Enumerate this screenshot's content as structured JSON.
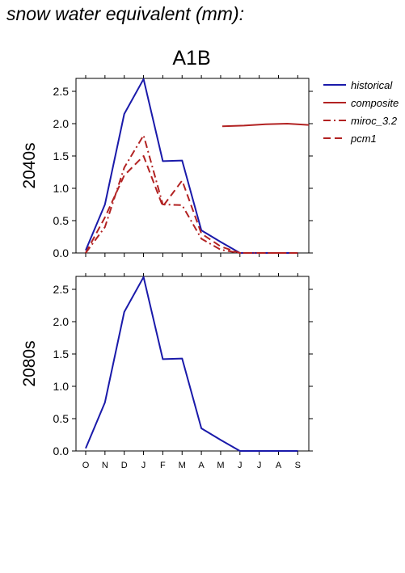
{
  "page_title": "snow water equivalent (mm):",
  "chart_data": {
    "type": "line",
    "scenario_title": "A1B",
    "categories": [
      "O",
      "N",
      "D",
      "J",
      "F",
      "M",
      "A",
      "M",
      "J",
      "J",
      "A",
      "S"
    ],
    "ylim": [
      0,
      2.7
    ],
    "yticks": [
      "0.0",
      "0.5",
      "1.0",
      "1.5",
      "2.0",
      "2.5"
    ],
    "ytick_values": [
      0,
      0.5,
      1.0,
      1.5,
      2.0,
      2.5
    ],
    "legend_position": "right",
    "legend": [
      {
        "name": "historical",
        "color": "#1a1aaa",
        "dash": "solid"
      },
      {
        "name": "composite",
        "color": "#b22222",
        "dash": "solid"
      },
      {
        "name": "miroc_3.2",
        "color": "#b22222",
        "dash": "dashdot"
      },
      {
        "name": "pcm1",
        "color": "#b22222",
        "dash": "dashed"
      }
    ],
    "panels": [
      {
        "label": "2040s",
        "series": [
          {
            "name": "historical",
            "color": "#1a1aaa",
            "dash": "solid",
            "values": [
              0.04,
              0.75,
              2.15,
              2.69,
              1.42,
              1.43,
              0.35,
              0.17,
              0.0,
              0.0,
              0.0,
              0.0
            ]
          },
          {
            "name": "miroc_3.2",
            "color": "#b22222",
            "dash": "dashdot",
            "values": [
              0.0,
              0.4,
              1.32,
              1.82,
              0.75,
              0.74,
              0.22,
              0.05,
              0.0,
              0.0,
              0.0,
              0.0
            ]
          },
          {
            "name": "pcm1",
            "color": "#b22222",
            "dash": "dashed",
            "values": [
              0.0,
              0.55,
              1.2,
              1.5,
              0.72,
              1.12,
              0.3,
              0.1,
              0.0,
              0.0,
              0.0,
              0.0
            ]
          }
        ]
      },
      {
        "label": "2080s",
        "series": [
          {
            "name": "historical",
            "color": "#1a1aaa",
            "dash": "solid",
            "values": [
              0.04,
              0.75,
              2.15,
              2.69,
              1.42,
              1.43,
              0.35,
              0.17,
              0.0,
              0.0,
              0.0,
              0.0
            ]
          }
        ]
      }
    ],
    "legend_sample_series": {
      "name": "composite",
      "values": [
        1.96,
        1.97,
        1.99,
        2.0,
        1.98
      ]
    }
  }
}
